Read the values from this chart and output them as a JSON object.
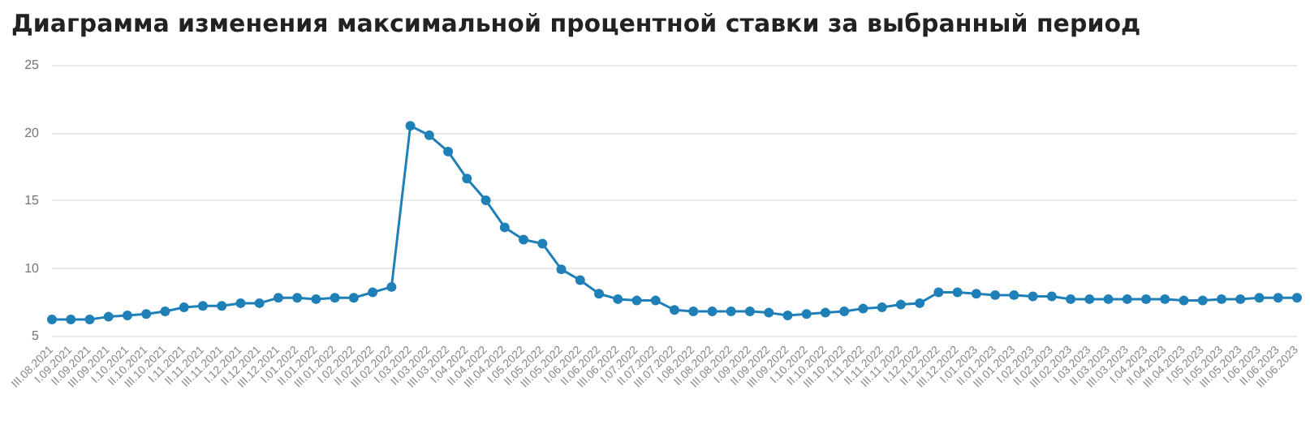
{
  "chart_data": {
    "type": "line",
    "title": "Диаграмма изменения максимальной процентной ставки за выбранный период",
    "categories": [
      "III.08.2021",
      "I.09.2021",
      "II.09.2021",
      "III.09.2021",
      "I.10.2021",
      "II.10.2021",
      "III.10.2021",
      "I.11.2021",
      "II.11.2021",
      "III.11.2021",
      "I.12.2021",
      "II.12.2021",
      "III.12.2021",
      "I.01.2022",
      "II.01.2022",
      "III.01.2022",
      "I.02.2022",
      "II.02.2022",
      "III.02.2022",
      "I.03.2022",
      "II.03.2022",
      "III.03.2022",
      "I.04.2022",
      "II.04.2022",
      "III.04.2022",
      "I.05.2022",
      "II.05.2022",
      "III.05.2022",
      "I.06.2022",
      "II.06.2022",
      "III.06.2022",
      "I.07.2022",
      "II.07.2022",
      "III.07.2022",
      "I.08.2022",
      "II.08.2022",
      "III.08.2022",
      "I.09.2022",
      "II.09.2022",
      "III.09.2022",
      "I.10.2022",
      "II.10.2022",
      "III.10.2022",
      "I.11.2022",
      "II.11.2022",
      "III.11.2022",
      "I.12.2022",
      "II.12.2022",
      "III.12.2022",
      "I.01.2023",
      "II.01.2023",
      "III.01.2023",
      "I.02.2023",
      "II.02.2023",
      "III.02.2023",
      "I.03.2023",
      "II.03.2023",
      "III.03.2023",
      "I.04.2023",
      "II.04.2023",
      "III.04.2023",
      "I.05.2023",
      "II.05.2023",
      "III.05.2023",
      "I.06.2023",
      "II.06.2023",
      "III.06.2023"
    ],
    "series": [
      {
        "color": "#1f80b8",
        "values": [
          6.2,
          6.2,
          6.2,
          6.4,
          6.5,
          6.6,
          6.8,
          7.1,
          7.2,
          7.2,
          7.4,
          7.4,
          7.8,
          7.8,
          7.7,
          7.8,
          7.8,
          8.2,
          8.6,
          20.5,
          19.8,
          18.6,
          16.6,
          15.0,
          13.0,
          12.1,
          11.8,
          9.9,
          9.1,
          8.1,
          7.7,
          7.6,
          7.6,
          6.9,
          6.8,
          6.8,
          6.8,
          6.8,
          6.7,
          6.5,
          6.6,
          6.7,
          6.8,
          7.0,
          7.1,
          7.3,
          7.4,
          8.2,
          8.2,
          8.1,
          8.0,
          8.0,
          7.9,
          7.9,
          7.7,
          7.7,
          7.7,
          7.7,
          7.7,
          7.7,
          7.6,
          7.6,
          7.7,
          7.7,
          7.8,
          7.8,
          7.8
        ]
      }
    ],
    "ylim": [
      5,
      25
    ],
    "yticks": [
      5,
      10,
      15,
      20,
      25
    ],
    "grid": "y",
    "marker": "circle",
    "line_style": "solid"
  }
}
